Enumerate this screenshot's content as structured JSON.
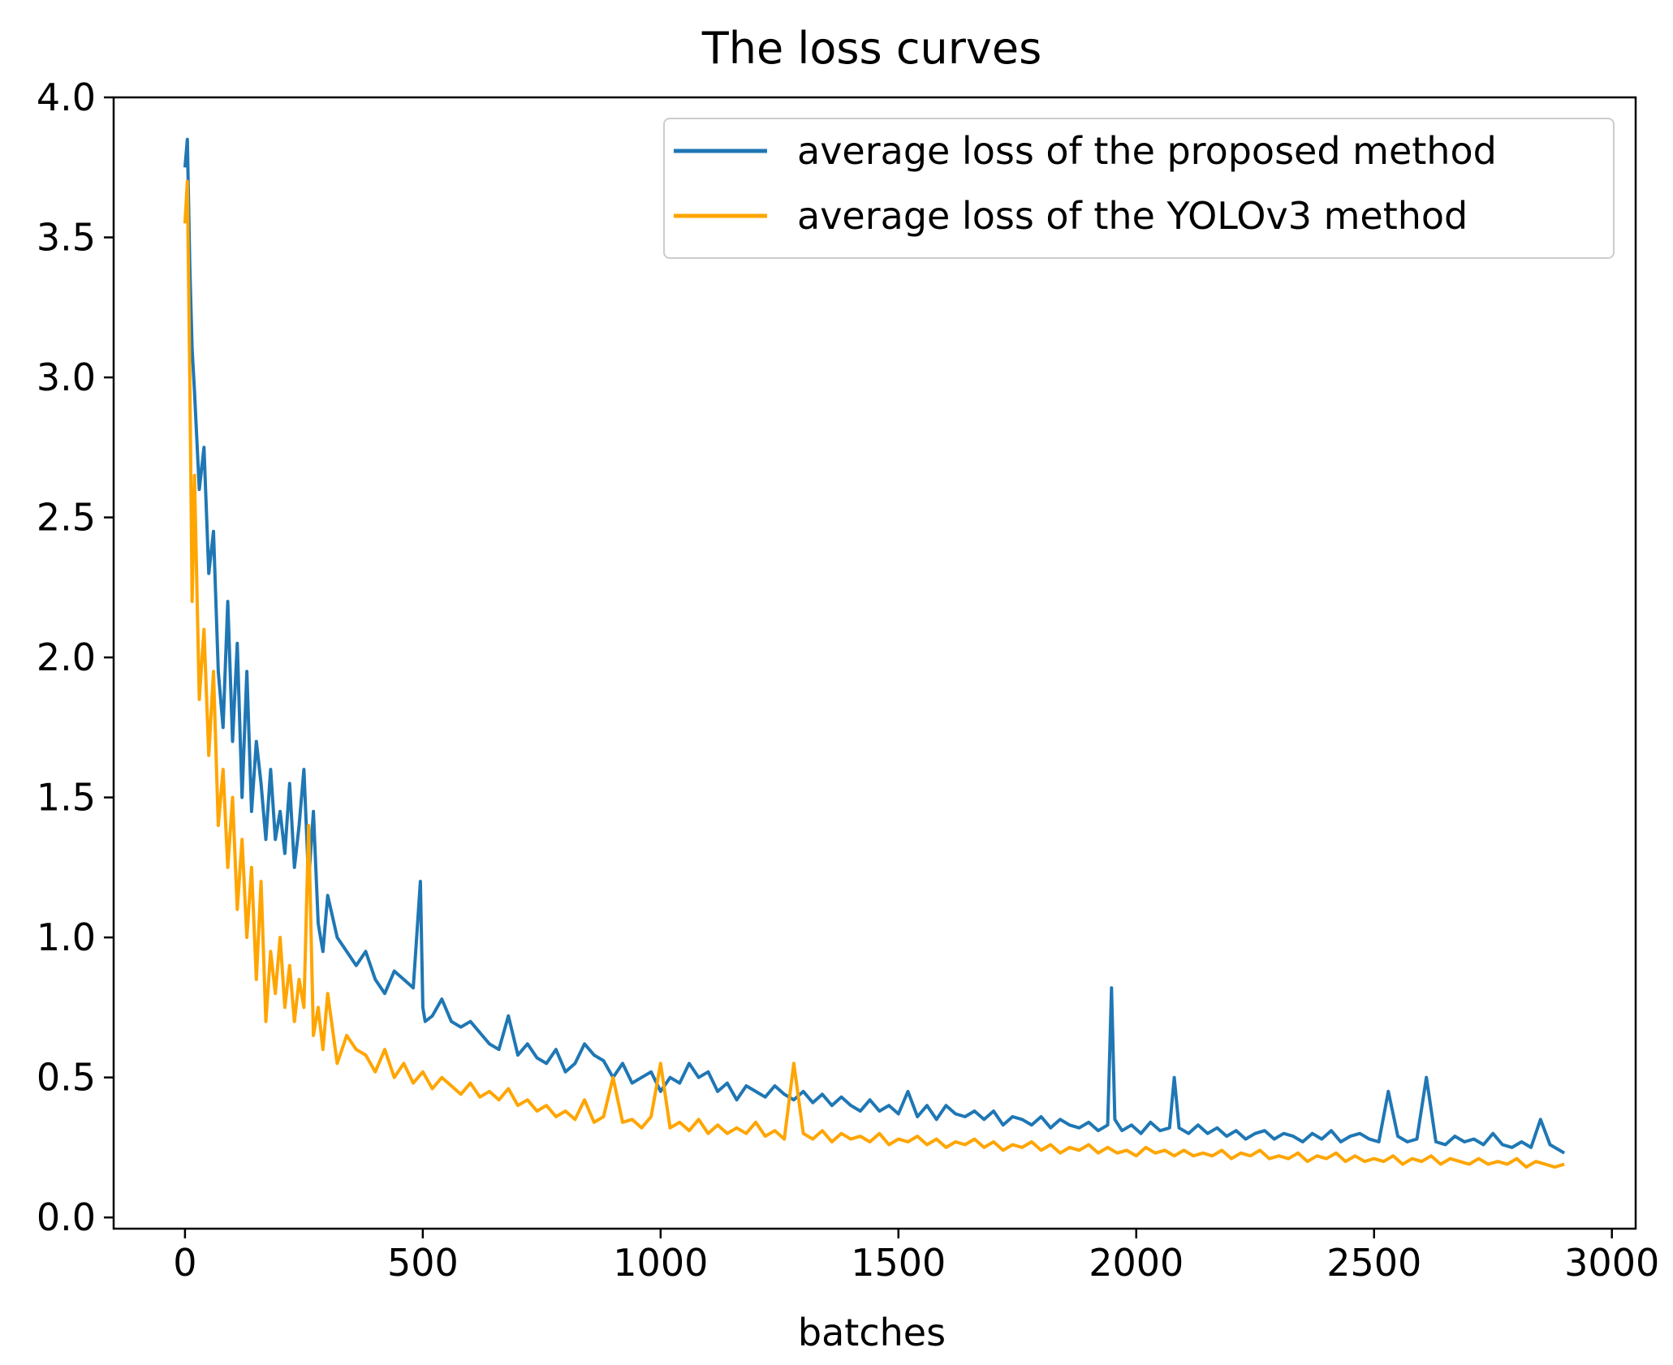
{
  "chart_data": {
    "type": "line",
    "title": "The loss curves",
    "xlabel": "batches",
    "ylabel": "",
    "xlim": [
      -150,
      3050
    ],
    "ylim": [
      -0.04,
      4.0
    ],
    "xticks": [
      0,
      500,
      1000,
      1500,
      2000,
      2500,
      3000
    ],
    "xtick_labels": [
      "0",
      "500",
      "1000",
      "1500",
      "2000",
      "2500",
      "3000"
    ],
    "yticks": [
      0.0,
      0.5,
      1.0,
      1.5,
      2.0,
      2.5,
      3.0,
      3.5,
      4.0
    ],
    "ytick_labels": [
      "0.0",
      "0.5",
      "1.0",
      "1.5",
      "2.0",
      "2.5",
      "3.0",
      "3.5",
      "4.0"
    ],
    "grid": false,
    "legend_position": "top-right",
    "series": [
      {
        "name": "average loss of the proposed method",
        "color": "#1f77b4",
        "x": [
          0,
          5,
          10,
          15,
          20,
          30,
          40,
          50,
          60,
          70,
          80,
          90,
          100,
          110,
          120,
          130,
          140,
          150,
          160,
          170,
          180,
          190,
          200,
          210,
          220,
          230,
          240,
          250,
          260,
          270,
          280,
          290,
          300,
          320,
          340,
          360,
          380,
          400,
          420,
          440,
          460,
          480,
          495,
          500,
          505,
          520,
          540,
          560,
          580,
          600,
          620,
          640,
          660,
          680,
          700,
          720,
          740,
          760,
          780,
          800,
          820,
          840,
          860,
          880,
          900,
          920,
          940,
          960,
          980,
          1000,
          1020,
          1040,
          1060,
          1080,
          1100,
          1120,
          1140,
          1160,
          1180,
          1200,
          1220,
          1240,
          1260,
          1280,
          1300,
          1320,
          1340,
          1360,
          1380,
          1400,
          1420,
          1440,
          1460,
          1480,
          1500,
          1520,
          1540,
          1560,
          1580,
          1600,
          1620,
          1640,
          1660,
          1680,
          1700,
          1720,
          1740,
          1760,
          1780,
          1800,
          1820,
          1840,
          1860,
          1880,
          1900,
          1920,
          1940,
          1948,
          1955,
          1970,
          1990,
          2010,
          2030,
          2050,
          2070,
          2080,
          2090,
          2110,
          2130,
          2150,
          2170,
          2190,
          2210,
          2230,
          2250,
          2270,
          2290,
          2310,
          2330,
          2350,
          2370,
          2390,
          2410,
          2430,
          2450,
          2470,
          2490,
          2510,
          2530,
          2550,
          2570,
          2590,
          2610,
          2630,
          2650,
          2670,
          2690,
          2710,
          2730,
          2750,
          2770,
          2790,
          2810,
          2830,
          2850,
          2870,
          2890,
          2900
        ],
        "values": [
          3.75,
          3.85,
          3.4,
          3.1,
          2.95,
          2.6,
          2.75,
          2.3,
          2.45,
          1.95,
          1.75,
          2.2,
          1.7,
          2.05,
          1.5,
          1.95,
          1.45,
          1.7,
          1.55,
          1.35,
          1.6,
          1.35,
          1.45,
          1.3,
          1.55,
          1.25,
          1.4,
          1.6,
          1.2,
          1.45,
          1.05,
          0.95,
          1.15,
          1.0,
          0.95,
          0.9,
          0.95,
          0.85,
          0.8,
          0.88,
          0.85,
          0.82,
          1.2,
          0.75,
          0.7,
          0.72,
          0.78,
          0.7,
          0.68,
          0.7,
          0.66,
          0.62,
          0.6,
          0.72,
          0.58,
          0.62,
          0.57,
          0.55,
          0.6,
          0.52,
          0.55,
          0.62,
          0.58,
          0.56,
          0.5,
          0.55,
          0.48,
          0.5,
          0.52,
          0.45,
          0.5,
          0.48,
          0.55,
          0.5,
          0.52,
          0.45,
          0.48,
          0.42,
          0.47,
          0.45,
          0.43,
          0.47,
          0.44,
          0.42,
          0.45,
          0.41,
          0.44,
          0.4,
          0.43,
          0.4,
          0.38,
          0.42,
          0.38,
          0.4,
          0.37,
          0.45,
          0.36,
          0.4,
          0.35,
          0.4,
          0.37,
          0.36,
          0.38,
          0.35,
          0.38,
          0.33,
          0.36,
          0.35,
          0.33,
          0.36,
          0.32,
          0.35,
          0.33,
          0.32,
          0.34,
          0.31,
          0.33,
          0.82,
          0.35,
          0.31,
          0.33,
          0.3,
          0.34,
          0.31,
          0.32,
          0.5,
          0.32,
          0.3,
          0.33,
          0.3,
          0.32,
          0.29,
          0.31,
          0.28,
          0.3,
          0.31,
          0.28,
          0.3,
          0.29,
          0.27,
          0.3,
          0.28,
          0.31,
          0.27,
          0.29,
          0.3,
          0.28,
          0.27,
          0.45,
          0.29,
          0.27,
          0.28,
          0.5,
          0.27,
          0.26,
          0.29,
          0.27,
          0.28,
          0.26,
          0.3,
          0.26,
          0.25,
          0.27,
          0.25,
          0.35,
          0.26,
          0.24,
          0.23
        ]
      },
      {
        "name": "average loss of the YOLOv3 method",
        "color": "#ffa500",
        "x": [
          0,
          5,
          10,
          15,
          20,
          30,
          40,
          50,
          60,
          70,
          80,
          90,
          100,
          110,
          120,
          130,
          140,
          150,
          160,
          170,
          180,
          190,
          200,
          210,
          220,
          230,
          240,
          250,
          260,
          270,
          280,
          290,
          300,
          320,
          340,
          360,
          380,
          400,
          420,
          440,
          460,
          480,
          500,
          520,
          540,
          560,
          580,
          600,
          620,
          640,
          660,
          680,
          700,
          720,
          740,
          760,
          780,
          800,
          820,
          840,
          860,
          880,
          900,
          920,
          940,
          960,
          980,
          1000,
          1020,
          1040,
          1060,
          1080,
          1100,
          1120,
          1140,
          1160,
          1180,
          1200,
          1220,
          1240,
          1260,
          1280,
          1300,
          1320,
          1340,
          1360,
          1380,
          1400,
          1420,
          1440,
          1460,
          1480,
          1500,
          1520,
          1540,
          1560,
          1580,
          1600,
          1620,
          1640,
          1660,
          1680,
          1700,
          1720,
          1740,
          1760,
          1780,
          1800,
          1820,
          1840,
          1860,
          1880,
          1900,
          1920,
          1940,
          1960,
          1980,
          2000,
          2020,
          2040,
          2060,
          2080,
          2100,
          2120,
          2140,
          2160,
          2180,
          2200,
          2220,
          2240,
          2260,
          2280,
          2300,
          2320,
          2340,
          2360,
          2380,
          2400,
          2420,
          2440,
          2460,
          2480,
          2500,
          2520,
          2540,
          2560,
          2580,
          2600,
          2620,
          2640,
          2660,
          2680,
          2700,
          2720,
          2740,
          2760,
          2780,
          2800,
          2820,
          2840,
          2860,
          2880,
          2900
        ],
        "values": [
          3.55,
          3.7,
          3.0,
          2.2,
          2.65,
          1.85,
          2.1,
          1.65,
          1.95,
          1.4,
          1.6,
          1.25,
          1.5,
          1.1,
          1.35,
          1.0,
          1.25,
          0.85,
          1.2,
          0.7,
          0.95,
          0.8,
          1.0,
          0.75,
          0.9,
          0.7,
          0.85,
          0.75,
          1.4,
          0.65,
          0.75,
          0.6,
          0.8,
          0.55,
          0.65,
          0.6,
          0.58,
          0.52,
          0.6,
          0.5,
          0.55,
          0.48,
          0.52,
          0.46,
          0.5,
          0.47,
          0.44,
          0.48,
          0.43,
          0.45,
          0.42,
          0.46,
          0.4,
          0.42,
          0.38,
          0.4,
          0.36,
          0.38,
          0.35,
          0.42,
          0.34,
          0.36,
          0.5,
          0.34,
          0.35,
          0.32,
          0.36,
          0.55,
          0.32,
          0.34,
          0.31,
          0.35,
          0.3,
          0.33,
          0.3,
          0.32,
          0.3,
          0.34,
          0.29,
          0.31,
          0.28,
          0.55,
          0.3,
          0.28,
          0.31,
          0.27,
          0.3,
          0.28,
          0.29,
          0.27,
          0.3,
          0.26,
          0.28,
          0.27,
          0.29,
          0.26,
          0.28,
          0.25,
          0.27,
          0.26,
          0.28,
          0.25,
          0.27,
          0.24,
          0.26,
          0.25,
          0.27,
          0.24,
          0.26,
          0.23,
          0.25,
          0.24,
          0.26,
          0.23,
          0.25,
          0.23,
          0.24,
          0.22,
          0.25,
          0.23,
          0.24,
          0.22,
          0.24,
          0.22,
          0.23,
          0.22,
          0.24,
          0.21,
          0.23,
          0.22,
          0.24,
          0.21,
          0.22,
          0.21,
          0.23,
          0.2,
          0.22,
          0.21,
          0.23,
          0.2,
          0.22,
          0.2,
          0.21,
          0.2,
          0.22,
          0.19,
          0.21,
          0.2,
          0.22,
          0.19,
          0.21,
          0.2,
          0.19,
          0.21,
          0.19,
          0.2,
          0.19,
          0.21,
          0.18,
          0.2,
          0.19,
          0.18,
          0.19
        ]
      }
    ]
  }
}
